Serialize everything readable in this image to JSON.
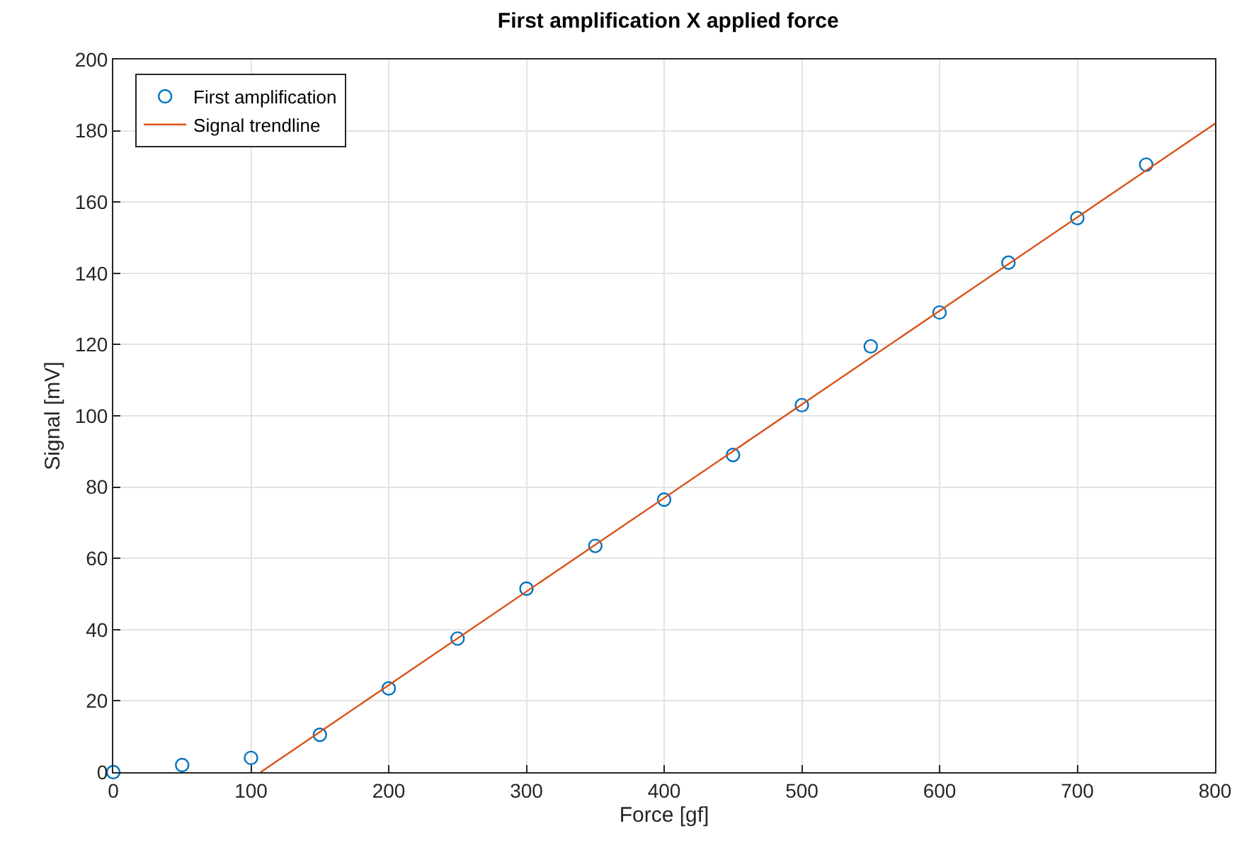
{
  "chart_data": {
    "type": "scatter",
    "title": "First amplification X applied force",
    "xlabel": "Force [gf]",
    "ylabel": "Signal [mV]",
    "xlim": [
      0,
      800
    ],
    "xticks": [
      0,
      100,
      200,
      300,
      400,
      500,
      600,
      700,
      800
    ],
    "ylim": [
      0,
      200
    ],
    "yticks": [
      0,
      20,
      40,
      60,
      80,
      100,
      120,
      140,
      160,
      180,
      200
    ],
    "grid": true,
    "legend": "top left",
    "series": [
      {
        "name": "First amplification",
        "color": "#0072bd",
        "marker": "circle",
        "x": [
          0,
          50,
          100,
          150,
          200,
          250,
          300,
          350,
          400,
          450,
          500,
          550,
          600,
          650,
          700,
          750
        ],
        "values": [
          0,
          2,
          4,
          10.5,
          23.5,
          37.5,
          51.5,
          63.5,
          76.5,
          89,
          103,
          119.5,
          129,
          143,
          155.5,
          170.5
        ]
      },
      {
        "name": "Signal trendline",
        "color": "#d95319",
        "type": "line",
        "marker": "none",
        "x": [
          107,
          800
        ],
        "values": [
          0,
          182
        ]
      }
    ]
  }
}
